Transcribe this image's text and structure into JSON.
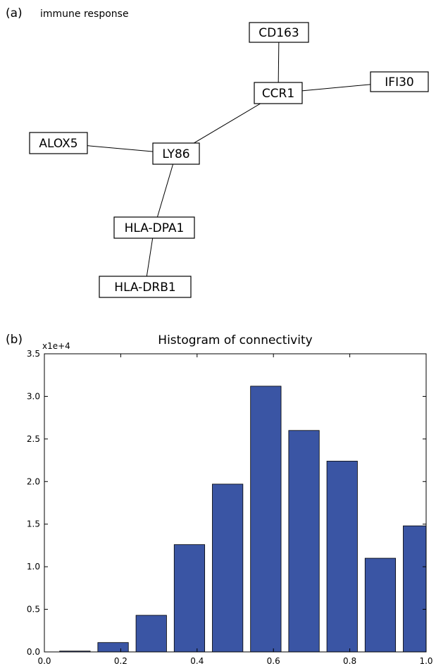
{
  "panel_a": {
    "label": "(a)",
    "title": "immune response",
    "nodes": [
      {
        "id": "CD163",
        "label": "CD163"
      },
      {
        "id": "CCR1",
        "label": "CCR1"
      },
      {
        "id": "IFI30",
        "label": "IFI30"
      },
      {
        "id": "ALOX5",
        "label": "ALOX5"
      },
      {
        "id": "LY86",
        "label": "LY86"
      },
      {
        "id": "HLA-DPA1",
        "label": "HLA-DPA1"
      },
      {
        "id": "HLA-DRB1",
        "label": "HLA-DRB1"
      }
    ],
    "edges": [
      [
        "CD163",
        "CCR1"
      ],
      [
        "CCR1",
        "IFI30"
      ],
      [
        "CCR1",
        "LY86"
      ],
      [
        "ALOX5",
        "LY86"
      ],
      [
        "LY86",
        "HLA-DPA1"
      ],
      [
        "HLA-DPA1",
        "HLA-DRB1"
      ]
    ]
  },
  "panel_b": {
    "label": "(b)"
  },
  "chart_data": {
    "type": "bar",
    "title": "Histogram of connectivity",
    "xlabel": "",
    "ylabel": "",
    "scale_label": "x1e+4",
    "bar_color": "#3a55a4",
    "bins": [
      {
        "x0": 0.04,
        "x1": 0.12,
        "value": 0.01
      },
      {
        "x0": 0.14,
        "x1": 0.22,
        "value": 0.11
      },
      {
        "x0": 0.24,
        "x1": 0.32,
        "value": 0.43
      },
      {
        "x0": 0.34,
        "x1": 0.42,
        "value": 1.26
      },
      {
        "x0": 0.44,
        "x1": 0.52,
        "value": 1.97
      },
      {
        "x0": 0.54,
        "x1": 0.62,
        "value": 3.12
      },
      {
        "x0": 0.64,
        "x1": 0.72,
        "value": 2.6
      },
      {
        "x0": 0.74,
        "x1": 0.82,
        "value": 2.24
      },
      {
        "x0": 0.84,
        "x1": 0.92,
        "value": 1.1
      },
      {
        "x0": 0.94,
        "x1": 1.02,
        "value": 1.48
      }
    ],
    "xlim": [
      0.0,
      1.0
    ],
    "ylim": [
      0.0,
      3.5
    ],
    "xticks": [
      0.0,
      0.2,
      0.4,
      0.6,
      0.8,
      1.0
    ],
    "xtick_labels": [
      "0.0",
      "0.2",
      "0.4",
      "0.6",
      "0.8",
      "1.0"
    ],
    "yticks": [
      0.0,
      0.5,
      1.0,
      1.5,
      2.0,
      2.5,
      3.0,
      3.5
    ],
    "ytick_labels": [
      "0.0",
      "0.5",
      "1.0",
      "1.5",
      "2.0",
      "2.5",
      "3.0",
      "3.5"
    ],
    "grid": false,
    "legend": "none"
  }
}
